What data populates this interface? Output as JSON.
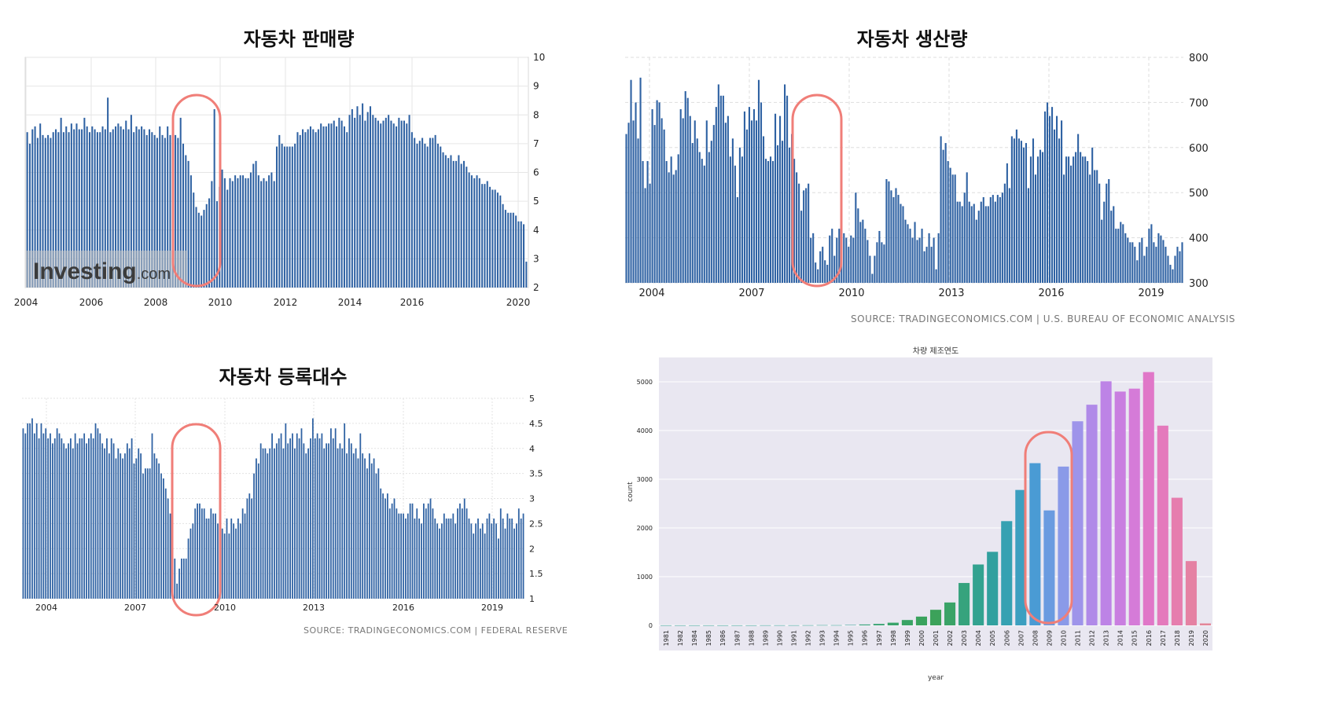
{
  "panels": {
    "sales": {
      "title": "자동차 판매량",
      "watermark": "Investing.com",
      "logo_text": "Investing",
      "logo_suffix": ".com",
      "xticks": [
        "2004",
        "2006",
        "2008",
        "2010",
        "2012",
        "2014",
        "2016",
        "2020"
      ],
      "yticks": [
        "2",
        "3",
        "4",
        "5",
        "6",
        "7",
        "8",
        "9",
        "10"
      ]
    },
    "production": {
      "title": "자동차 생산량",
      "source": "SOURCE: TRADINGECONOMICS.COM | U.S. BUREAU OF ECONOMIC ANALYSIS",
      "xticks": [
        "2004",
        "2007",
        "2010",
        "2013",
        "2016",
        "2019"
      ],
      "yticks": [
        "300",
        "400",
        "500",
        "600",
        "700",
        "800"
      ]
    },
    "registrations": {
      "title": "자동차 등록대수",
      "source": "SOURCE: TRADINGECONOMICS.COM | FEDERAL RESERVE",
      "xticks": [
        "2004",
        "2007",
        "2010",
        "2013",
        "2016",
        "2019"
      ],
      "yticks": [
        "1",
        "1.5",
        "2",
        "2.5",
        "3",
        "3.5",
        "4",
        "4.5",
        "5"
      ]
    },
    "yearcount": {
      "title": "차량 제조연도",
      "xlabel": "year",
      "ylabel": "count",
      "yticks": [
        "0",
        "1000",
        "2000",
        "3000",
        "4000",
        "5000"
      ]
    }
  },
  "colors": {
    "bar_blue": "#2f62a3",
    "highlight": "#f07e78",
    "plot_bg": "#e9e7f1"
  },
  "chart_data": [
    {
      "type": "bar",
      "title": "자동차 판매량",
      "x": [
        "2004",
        "2004",
        "2004",
        "2004",
        "2004",
        "2004",
        "2004",
        "2004",
        "2004",
        "2004",
        "2004",
        "2004",
        "2005",
        "2005",
        "2005",
        "2005",
        "2005",
        "2005",
        "2005",
        "2005",
        "2005",
        "2005",
        "2005",
        "2005",
        "2006",
        "2006",
        "2006",
        "2006",
        "2006",
        "2006",
        "2006",
        "2006",
        "2006",
        "2006",
        "2006",
        "2006",
        "2007",
        "2007",
        "2007",
        "2007",
        "2007",
        "2007",
        "2007",
        "2007",
        "2007",
        "2007",
        "2007",
        "2007",
        "2008",
        "2008",
        "2008",
        "2008",
        "2008",
        "2008",
        "2008",
        "2008",
        "2008",
        "2008",
        "2008",
        "2008",
        "2009",
        "2009",
        "2009",
        "2009",
        "2009",
        "2009",
        "2009",
        "2009",
        "2009",
        "2009",
        "2009",
        "2009",
        "2010",
        "2010",
        "2010",
        "2010",
        "2010",
        "2010",
        "2010",
        "2010",
        "2010",
        "2010",
        "2010",
        "2010",
        "2011",
        "2011",
        "2011",
        "2011",
        "2011",
        "2011",
        "2011",
        "2011",
        "2011",
        "2011",
        "2011",
        "2011",
        "2012",
        "2012",
        "2012",
        "2012",
        "2012",
        "2012",
        "2012",
        "2012",
        "2012",
        "2012",
        "2012",
        "2012",
        "2013",
        "2013",
        "2013",
        "2013",
        "2013",
        "2013",
        "2013",
        "2013",
        "2013",
        "2013",
        "2013",
        "2013",
        "2014",
        "2014",
        "2014",
        "2014",
        "2014",
        "2014",
        "2014",
        "2014",
        "2014",
        "2014",
        "2014",
        "2014",
        "2015",
        "2015",
        "2015",
        "2015",
        "2015",
        "2015",
        "2015",
        "2015",
        "2015",
        "2015",
        "2015",
        "2015",
        "2016",
        "2016",
        "2016",
        "2016",
        "2016",
        "2016",
        "2016",
        "2016",
        "2016",
        "2016",
        "2016",
        "2016",
        "2017",
        "2017",
        "2017",
        "2017",
        "2017",
        "2017",
        "2017",
        "2017",
        "2017",
        "2017",
        "2017",
        "2017",
        "2018",
        "2018",
        "2018",
        "2018",
        "2018",
        "2018",
        "2018",
        "2018",
        "2018",
        "2018",
        "2018",
        "2018",
        "2019",
        "2019",
        "2019",
        "2019",
        "2019",
        "2019",
        "2019",
        "2019",
        "2019",
        "2019",
        "2019",
        "2019",
        "2020"
      ],
      "values": [
        7.4,
        7.0,
        7.5,
        7.6,
        7.2,
        7.7,
        7.3,
        7.2,
        7.3,
        7.2,
        7.4,
        7.5,
        7.4,
        7.9,
        7.4,
        7.6,
        7.4,
        7.7,
        7.5,
        7.7,
        7.5,
        7.5,
        7.9,
        7.6,
        7.4,
        7.6,
        7.5,
        7.4,
        7.4,
        7.6,
        7.5,
        8.6,
        7.4,
        7.5,
        7.6,
        7.7,
        7.6,
        7.5,
        7.8,
        7.5,
        8.0,
        7.4,
        7.6,
        7.5,
        7.6,
        7.5,
        7.3,
        7.5,
        7.4,
        7.3,
        7.2,
        7.6,
        7.3,
        7.2,
        7.6,
        7.3,
        7.2,
        7.3,
        7.2,
        7.9,
        7.0,
        6.6,
        6.4,
        5.9,
        5.3,
        4.8,
        4.6,
        4.5,
        4.7,
        4.9,
        5.1,
        5.7,
        8.2,
        5.0,
        5.5,
        6.1,
        5.8,
        5.4,
        5.8,
        5.7,
        5.9,
        5.8,
        5.9,
        5.9,
        5.8,
        5.8,
        6.0,
        6.3,
        6.4,
        5.9,
        5.7,
        5.8,
        5.7,
        5.9,
        6.0,
        5.7,
        6.9,
        7.3,
        7.0,
        6.9,
        6.9,
        6.9,
        6.9,
        7.0,
        7.4,
        7.3,
        7.5,
        7.4,
        7.5,
        7.6,
        7.5,
        7.4,
        7.5,
        7.7,
        7.6,
        7.6,
        7.7,
        7.7,
        7.8,
        7.6,
        7.9,
        7.8,
        7.6,
        7.4,
        8.0,
        8.2,
        7.9,
        8.3,
        8.0,
        8.4,
        7.8,
        8.1,
        8.3,
        8.0,
        7.9,
        7.8,
        7.7,
        7.8,
        7.9,
        8.0,
        7.8,
        7.7,
        7.6,
        7.9,
        7.8,
        7.8,
        7.7,
        8.0,
        7.4,
        7.2,
        7.0,
        7.1,
        7.2,
        7.0,
        6.9,
        7.2,
        7.2,
        7.3,
        7.0,
        6.9,
        6.7,
        6.6,
        6.5,
        6.6,
        6.4,
        6.4,
        6.6,
        6.3,
        6.4,
        6.2,
        6.0,
        5.9,
        5.8,
        5.9,
        5.8,
        5.6,
        5.6,
        5.7,
        5.5,
        5.4,
        5.4,
        5.3,
        5.2,
        4.9,
        4.7,
        4.6,
        4.6,
        4.6,
        4.5,
        4.3,
        4.3,
        4.2,
        2.9
      ]
    },
    {
      "type": "bar",
      "title": "자동차 생산량",
      "ylim": [
        300,
        800
      ],
      "values": [
        630,
        655,
        750,
        660,
        700,
        620,
        755,
        570,
        510,
        570,
        520,
        685,
        650,
        705,
        700,
        665,
        640,
        570,
        545,
        580,
        540,
        550,
        585,
        685,
        665,
        725,
        710,
        670,
        610,
        660,
        620,
        590,
        575,
        560,
        660,
        590,
        615,
        650,
        690,
        740,
        715,
        715,
        655,
        670,
        580,
        620,
        560,
        490,
        600,
        580,
        680,
        640,
        690,
        660,
        685,
        660,
        750,
        700,
        625,
        575,
        570,
        580,
        570,
        675,
        605,
        670,
        615,
        740,
        715,
        600,
        630,
        575,
        545,
        520,
        460,
        505,
        510,
        520,
        400,
        410,
        345,
        330,
        370,
        380,
        350,
        340,
        405,
        420,
        360,
        400,
        420,
        470,
        410,
        400,
        380,
        405,
        400,
        500,
        465,
        435,
        440,
        420,
        395,
        360,
        320,
        360,
        390,
        415,
        390,
        385,
        530,
        525,
        505,
        490,
        510,
        495,
        475,
        470,
        440,
        430,
        420,
        400,
        435,
        395,
        400,
        420,
        370,
        380,
        410,
        380,
        400,
        330,
        410,
        625,
        595,
        610,
        570,
        555,
        540,
        540,
        480,
        480,
        470,
        500,
        545,
        480,
        470,
        475,
        440,
        460,
        480,
        490,
        470,
        470,
        490,
        495,
        480,
        495,
        490,
        500,
        520,
        565,
        510,
        625,
        620,
        640,
        620,
        615,
        600,
        610,
        510,
        580,
        620,
        540,
        580,
        595,
        590,
        680,
        700,
        670,
        690,
        640,
        670,
        620,
        660,
        540,
        580,
        580,
        560,
        580,
        590,
        630,
        590,
        580,
        580,
        570,
        540,
        600,
        550,
        550,
        520,
        440,
        480,
        520,
        530,
        460,
        470,
        420,
        420,
        435,
        430,
        410,
        400,
        390,
        390,
        380,
        350,
        390,
        400,
        360,
        380,
        420,
        430,
        390,
        380,
        410,
        405,
        395,
        380,
        360,
        340,
        330,
        360,
        380,
        370,
        390
      ]
    },
    {
      "type": "bar",
      "title": "자동차 등록대수",
      "ylim": [
        1,
        5
      ],
      "values": [
        4.4,
        4.3,
        4.5,
        4.5,
        4.6,
        4.3,
        4.5,
        4.2,
        4.5,
        4.3,
        4.4,
        4.2,
        4.3,
        4.1,
        4.2,
        4.4,
        4.3,
        4.2,
        4.1,
        4.0,
        4.1,
        4.2,
        4.0,
        4.3,
        4.1,
        4.2,
        4.2,
        4.3,
        4.1,
        4.2,
        4.3,
        4.2,
        4.5,
        4.4,
        4.3,
        4.1,
        4.0,
        4.2,
        3.9,
        4.2,
        4.1,
        3.8,
        4.0,
        3.9,
        3.8,
        3.9,
        4.1,
        4.0,
        4.2,
        3.7,
        3.8,
        4.0,
        3.9,
        3.5,
        3.6,
        3.6,
        3.6,
        4.3,
        3.9,
        3.8,
        3.7,
        3.5,
        3.4,
        3.2,
        3.0,
        2.7,
        2.2,
        1.8,
        1.3,
        1.6,
        1.8,
        1.8,
        1.8,
        2.2,
        2.4,
        2.5,
        2.8,
        2.9,
        2.9,
        2.8,
        2.8,
        2.6,
        2.6,
        2.8,
        2.7,
        2.7,
        2.5,
        2.6,
        2.4,
        2.3,
        2.6,
        2.3,
        2.6,
        2.5,
        2.4,
        2.6,
        2.5,
        2.8,
        2.7,
        3.0,
        3.1,
        3.0,
        3.5,
        3.8,
        3.7,
        4.1,
        4.0,
        4.0,
        3.9,
        4.0,
        4.3,
        4.0,
        4.1,
        4.2,
        4.3,
        4.0,
        4.5,
        4.1,
        4.2,
        4.3,
        4.0,
        4.3,
        4.2,
        4.4,
        4.1,
        3.9,
        4.0,
        4.2,
        4.6,
        4.2,
        4.3,
        4.2,
        4.3,
        4.0,
        4.1,
        4.1,
        4.4,
        4.2,
        4.4,
        4.0,
        4.1,
        4.0,
        4.5,
        3.9,
        4.2,
        4.1,
        3.9,
        4.0,
        3.8,
        4.3,
        3.9,
        3.8,
        3.6,
        3.9,
        3.7,
        3.8,
        3.5,
        3.6,
        3.2,
        3.1,
        3.0,
        3.1,
        2.8,
        2.9,
        3.0,
        2.8,
        2.7,
        2.7,
        2.7,
        2.6,
        2.7,
        2.9,
        2.9,
        2.6,
        2.8,
        2.6,
        2.5,
        2.9,
        2.8,
        2.9,
        3.0,
        2.8,
        2.6,
        2.5,
        2.4,
        2.5,
        2.7,
        2.6,
        2.6,
        2.6,
        2.7,
        2.5,
        2.8,
        2.9,
        2.8,
        3.0,
        2.8,
        2.6,
        2.5,
        2.3,
        2.5,
        2.6,
        2.4,
        2.5,
        2.3,
        2.6,
        2.7,
        2.5,
        2.6,
        2.5,
        2.2,
        2.8,
        2.6,
        2.4,
        2.7,
        2.6,
        2.6,
        2.4,
        2.5,
        2.8,
        2.6,
        2.7
      ]
    },
    {
      "type": "bar",
      "title": "차량 제조연도",
      "xlabel": "year",
      "ylabel": "count",
      "ylim": [
        0,
        5500
      ],
      "categories": [
        "1981",
        "1982",
        "1984",
        "1985",
        "1986",
        "1987",
        "1988",
        "1989",
        "1990",
        "1991",
        "1992",
        "1993",
        "1994",
        "1995",
        "1996",
        "1997",
        "1998",
        "1999",
        "2000",
        "2001",
        "2002",
        "2003",
        "2004",
        "2005",
        "2006",
        "2007",
        "2008",
        "2009",
        "2010",
        "2011",
        "2012",
        "2013",
        "2014",
        "2015",
        "2016",
        "2017",
        "2018",
        "2019",
        "2020"
      ],
      "values": [
        1,
        1,
        1,
        1,
        1,
        1,
        1,
        2,
        2,
        2,
        3,
        5,
        4,
        8,
        18,
        30,
        55,
        110,
        180,
        320,
        470,
        870,
        1250,
        1510,
        2140,
        2780,
        3330,
        2360,
        3260,
        4190,
        4530,
        5010,
        4800,
        4860,
        5200,
        4100,
        2620,
        1320,
        40
      ],
      "colors": [
        "#2a9d8f",
        "#2a9d8f",
        "#2a9d8f",
        "#2a9d8f",
        "#2a9d8f",
        "#2a9d8f",
        "#2a9d8f",
        "#2a9d8f",
        "#2a9d8f",
        "#2a9d8f",
        "#2a9d8f",
        "#2a9d8f",
        "#2a9d8f",
        "#2a9d8f",
        "#35a27a",
        "#37a372",
        "#39a46b",
        "#39a464",
        "#3aa35d",
        "#3ca25a",
        "#3aa367",
        "#36a37d",
        "#33a290",
        "#31a09f",
        "#35a1b2",
        "#3c9fc0",
        "#4a9bd4",
        "#6a9be0",
        "#8a9ae8",
        "#9e94ea",
        "#b08ae8",
        "#bd83e6",
        "#c97ee0",
        "#d57bd8",
        "#e077c8",
        "#e47abc",
        "#e67dae",
        "#e581a3",
        "#e38699"
      ]
    }
  ]
}
